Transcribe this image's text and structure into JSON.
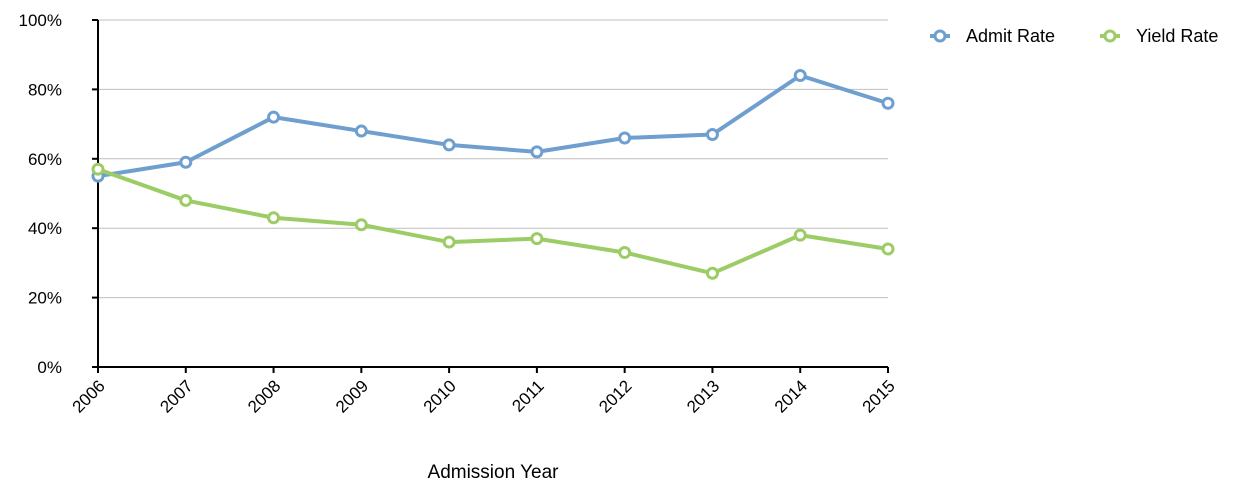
{
  "chart_data": {
    "type": "line",
    "title": "",
    "xlabel": "Admission Year",
    "ylabel": "",
    "categories": [
      "2006",
      "2007",
      "2008",
      "2009",
      "2010",
      "2011",
      "2012",
      "2013",
      "2014",
      "2015"
    ],
    "ylim": [
      0,
      100
    ],
    "yticks": [
      "0%",
      "20%",
      "40%",
      "60%",
      "80%",
      "100%"
    ],
    "grid": true,
    "legend_position": "top-right",
    "series": [
      {
        "name": "Admit Rate",
        "color": "#6e9fcf",
        "values": [
          55,
          59,
          72,
          68,
          64,
          62,
          66,
          67,
          84,
          76
        ]
      },
      {
        "name": "Yield Rate",
        "color": "#9ccc65",
        "values": [
          57,
          48,
          43,
          41,
          36,
          37,
          33,
          27,
          38,
          34
        ]
      }
    ]
  }
}
